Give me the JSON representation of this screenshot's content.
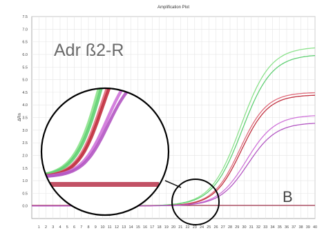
{
  "chart_data": {
    "type": "line",
    "title": "Amplification Plot",
    "panel_label": "B",
    "annotation": "Adr ß2-R",
    "xlabel": "",
    "ylabel": "ΔRn",
    "xlim": [
      0,
      40
    ],
    "ylim": [
      -0.5,
      7.5
    ],
    "y_ticks": [
      "0.0",
      "0.5",
      "1.0",
      "1.5",
      "2.0",
      "2.5",
      "3.0",
      "3.5",
      "4.0",
      "4.5",
      "5.0",
      "5.5",
      "6.0",
      "6.5",
      "7.0",
      "7.5"
    ],
    "x_ticks": [
      1,
      2,
      3,
      4,
      5,
      6,
      7,
      8,
      9,
      10,
      11,
      12,
      13,
      14,
      15,
      16,
      17,
      18,
      19,
      20,
      21,
      22,
      23,
      24,
      25,
      26,
      27,
      28,
      29,
      30,
      31,
      32,
      33,
      34,
      35,
      36,
      37,
      38,
      39,
      40
    ],
    "grid": true,
    "threshold": 0.02,
    "zoom_inset": true,
    "series": [
      {
        "color": "#8be28b",
        "plateau": 6.3,
        "midpoint": 29.5,
        "slope": 2.1
      },
      {
        "color": "#5fcf73",
        "plateau": 6.0,
        "midpoint": 29.7,
        "slope": 2.1
      },
      {
        "color": "#e06a7a",
        "plateau": 4.5,
        "midpoint": 29.4,
        "slope": 1.9
      },
      {
        "color": "#c0303f",
        "plateau": 4.4,
        "midpoint": 29.6,
        "slope": 1.9
      },
      {
        "color": "#cf73d9",
        "plateau": 3.6,
        "midpoint": 30.3,
        "slope": 2.0
      },
      {
        "color": "#b255c2",
        "plateau": 3.3,
        "midpoint": 30.5,
        "slope": 2.0
      }
    ],
    "colors": {
      "threshold": "#9a1f3a",
      "baseline": "#b7324a",
      "grid": "#e4e4e4",
      "axis": "#555555"
    }
  }
}
